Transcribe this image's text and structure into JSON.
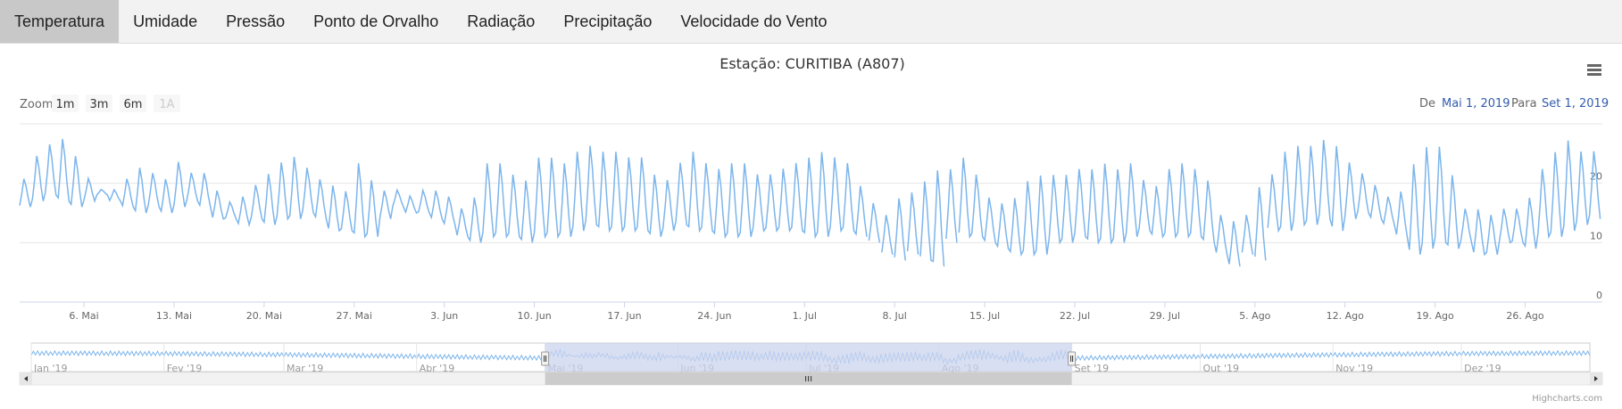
{
  "tabs": [
    {
      "label": "Temperatura",
      "active": true
    },
    {
      "label": "Umidade"
    },
    {
      "label": "Pressão"
    },
    {
      "label": "Ponto de Orvalho"
    },
    {
      "label": "Radiação"
    },
    {
      "label": "Precipitação"
    },
    {
      "label": "Velocidade do Vento"
    }
  ],
  "controls": {
    "zoom_label": "Zoom",
    "zoom_buttons": [
      "1m",
      "3m",
      "6m",
      "1A"
    ],
    "from_label": "De",
    "from_value": "Mai 1, 2019",
    "to_label": "Para",
    "to_value": "Set 1, 2019",
    "menu_icon": "hamburger-menu-icon"
  },
  "credits": "Highcharts.com",
  "colors": {
    "series": "#7cb5ec",
    "navigator_mask": "#ccd4ee",
    "tab_active": "#c8c8c8",
    "link": "#335cad"
  },
  "chart_data": {
    "type": "line",
    "title": "Estação: CURITIBA (A807)",
    "x_start": "2019-05-01",
    "x_end": "2019-09-01",
    "xticks": [
      "6. Mai",
      "13. Mai",
      "20. Mai",
      "27. Mai",
      "3. Jun",
      "10. Jun",
      "17. Jun",
      "24. Jun",
      "1. Jul",
      "8. Jul",
      "15. Jul",
      "22. Jul",
      "29. Jul",
      "5. Ago",
      "12. Ago",
      "19. Ago",
      "26. Ago"
    ],
    "xtick_dates": [
      "2019-05-06",
      "2019-05-13",
      "2019-05-20",
      "2019-05-27",
      "2019-06-03",
      "2019-06-10",
      "2019-06-17",
      "2019-06-24",
      "2019-07-01",
      "2019-07-08",
      "2019-07-15",
      "2019-07-22",
      "2019-07-29",
      "2019-08-05",
      "2019-08-12",
      "2019-08-19",
      "2019-08-26"
    ],
    "ylim": [
      0,
      30
    ],
    "yticks": [
      0,
      10,
      20
    ],
    "grid": true,
    "series": [
      {
        "x": [
          "2019-05-01",
          "2019-05-02",
          "2019-05-03",
          "2019-05-04",
          "2019-05-05",
          "2019-05-06",
          "2019-05-07",
          "2019-05-08",
          "2019-05-09",
          "2019-05-10",
          "2019-05-11",
          "2019-05-12",
          "2019-05-13",
          "2019-05-14",
          "2019-05-15",
          "2019-05-16",
          "2019-05-17",
          "2019-05-18",
          "2019-05-19",
          "2019-05-20",
          "2019-05-21",
          "2019-05-22",
          "2019-05-23",
          "2019-05-24",
          "2019-05-25",
          "2019-05-26",
          "2019-05-27",
          "2019-05-28",
          "2019-05-29",
          "2019-05-30",
          "2019-05-31",
          "2019-06-01",
          "2019-06-02",
          "2019-06-03",
          "2019-06-04",
          "2019-06-05",
          "2019-06-06",
          "2019-06-07",
          "2019-06-08",
          "2019-06-09",
          "2019-06-10",
          "2019-06-11",
          "2019-06-12",
          "2019-06-13",
          "2019-06-14",
          "2019-06-15",
          "2019-06-16",
          "2019-06-17",
          "2019-06-18",
          "2019-06-19",
          "2019-06-20",
          "2019-06-21",
          "2019-06-22",
          "2019-06-23",
          "2019-06-24",
          "2019-06-25",
          "2019-06-26",
          "2019-06-27",
          "2019-06-28",
          "2019-06-29",
          "2019-06-30",
          "2019-07-01",
          "2019-07-02",
          "2019-07-03",
          "2019-07-04",
          "2019-07-05",
          "2019-07-06",
          "2019-07-07",
          "2019-07-08",
          "2019-07-09",
          "2019-07-10",
          "2019-07-11",
          "2019-07-12",
          "2019-07-13",
          "2019-07-14",
          "2019-07-15",
          "2019-07-16",
          "2019-07-17",
          "2019-07-18",
          "2019-07-19",
          "2019-07-20",
          "2019-07-21",
          "2019-07-22",
          "2019-07-23",
          "2019-07-24",
          "2019-07-25",
          "2019-07-26",
          "2019-07-27",
          "2019-07-28",
          "2019-07-29",
          "2019-07-30",
          "2019-07-31",
          "2019-08-01",
          "2019-08-02",
          "2019-08-03",
          "2019-08-04",
          "2019-08-05",
          "2019-08-06",
          "2019-08-07",
          "2019-08-08",
          "2019-08-09",
          "2019-08-10",
          "2019-08-11",
          "2019-08-12",
          "2019-08-13",
          "2019-08-14",
          "2019-08-15",
          "2019-08-16",
          "2019-08-17",
          "2019-08-18",
          "2019-08-19",
          "2019-08-20",
          "2019-08-21",
          "2019-08-22",
          "2019-08-23",
          "2019-08-24",
          "2019-08-25",
          "2019-08-26",
          "2019-08-27",
          "2019-08-28",
          "2019-08-29",
          "2019-08-30",
          "2019-08-31"
        ],
        "daily_min": [
          16,
          17,
          18,
          17,
          16,
          17,
          18,
          17,
          16,
          15,
          16,
          15,
          16,
          17,
          16,
          14,
          14,
          13,
          14,
          13,
          14,
          14,
          15,
          14,
          12,
          12,
          11,
          11,
          14,
          16,
          15,
          15,
          14,
          13,
          11,
          10,
          11,
          11,
          11,
          10,
          11,
          11,
          11,
          12,
          13,
          12,
          12,
          12,
          12,
          11,
          12,
          13,
          12,
          12,
          11,
          11,
          11,
          12,
          12,
          12,
          12,
          11,
          11,
          12,
          12,
          11,
          10,
          8,
          7,
          8,
          7,
          6,
          10,
          11,
          11,
          10,
          9,
          8,
          8,
          8,
          10,
          10,
          11,
          10,
          10,
          10,
          11,
          12,
          11,
          11,
          11,
          11,
          10,
          8,
          6,
          8,
          7,
          12,
          12,
          13,
          13,
          14,
          12,
          14,
          15,
          14,
          13,
          11,
          8,
          9,
          10,
          9,
          10,
          8,
          8,
          10,
          10,
          9,
          11,
          11,
          12,
          13,
          14
        ],
        "daily_max": [
          21,
          25,
          27,
          28,
          25,
          21,
          19,
          19,
          21,
          23,
          22,
          21,
          24,
          22,
          22,
          19,
          17,
          18,
          20,
          22,
          24,
          25,
          23,
          21,
          20,
          19,
          24,
          21,
          19,
          19,
          18,
          19,
          19,
          18,
          16,
          18,
          24,
          24,
          22,
          21,
          25,
          25,
          24,
          26,
          27,
          26,
          26,
          25,
          25,
          22,
          21,
          24,
          26,
          24,
          23,
          24,
          24,
          22,
          22,
          23,
          24,
          25,
          26,
          25,
          24,
          20,
          17,
          15,
          18,
          19,
          21,
          23,
          23,
          25,
          22,
          18,
          17,
          18,
          21,
          22,
          22,
          22,
          23,
          23,
          24,
          23,
          24,
          21,
          20,
          23,
          24,
          23,
          21,
          15,
          14,
          15,
          20,
          22,
          26,
          27,
          27,
          28,
          27,
          24,
          22,
          20,
          18,
          19,
          24,
          27,
          27,
          22,
          16,
          16,
          15,
          16,
          16,
          18,
          23,
          26,
          28,
          26,
          26
        ],
        "gaps": [
          [
            "2019-07-05",
            "2019-07-06"
          ],
          [
            "2019-07-06",
            "2019-07-07"
          ],
          [
            "2019-07-07",
            "2019-07-08"
          ],
          [
            "2019-07-08",
            "2019-07-09"
          ],
          [
            "2019-07-09",
            "2019-07-10"
          ],
          [
            "2019-07-11",
            "2019-07-12"
          ],
          [
            "2019-07-12",
            "2019-07-13"
          ],
          [
            "2019-08-03",
            "2019-08-04"
          ],
          [
            "2019-08-04",
            "2019-08-05"
          ],
          [
            "2019-08-05",
            "2019-08-06"
          ]
        ]
      }
    ]
  },
  "navigator": {
    "labels": [
      "Jan '19",
      "Fev '19",
      "Mar '19",
      "Abr '19",
      "Mai '19",
      "Jun '19",
      "Jul '19",
      "Ago '19",
      "Set '19",
      "Out '19",
      "Nov '19",
      "Dez '19"
    ],
    "label_dates": [
      "2019-01-01",
      "2019-02-01",
      "2019-03-01",
      "2019-04-01",
      "2019-05-01",
      "2019-06-01",
      "2019-07-01",
      "2019-08-01",
      "2019-09-01",
      "2019-10-01",
      "2019-11-01",
      "2019-12-01"
    ],
    "range_start": "2019-01-01",
    "range_end": "2019-12-31",
    "selected_from": "2019-05-01",
    "selected_to": "2019-09-01"
  }
}
